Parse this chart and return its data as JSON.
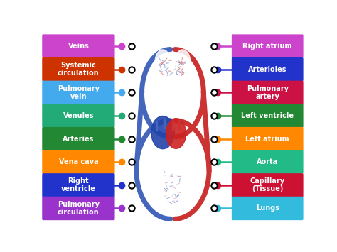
{
  "background_color": "#ffffff",
  "left_labels": [
    {
      "text": "Veins",
      "color": "#cc44cc",
      "dot_color": "#cc44cc"
    },
    {
      "text": "Systemic\ncirculation",
      "color": "#cc3300",
      "dot_color": "#cc3300"
    },
    {
      "text": "Pulmonary\nvein",
      "color": "#44aaee",
      "dot_color": "#44aaee"
    },
    {
      "text": "Venules",
      "color": "#22aa77",
      "dot_color": "#22aa77"
    },
    {
      "text": "Arteries",
      "color": "#228833",
      "dot_color": "#228833"
    },
    {
      "text": "Vena cava",
      "color": "#ff8800",
      "dot_color": "#ff8800"
    },
    {
      "text": "Right\nventricle",
      "color": "#2233cc",
      "dot_color": "#2233cc"
    },
    {
      "text": "Pulmonary\ncirculation",
      "color": "#9933cc",
      "dot_color": "#9933cc"
    }
  ],
  "right_labels": [
    {
      "text": "Right atrium",
      "color": "#cc44cc",
      "dot_color": "#cc44cc"
    },
    {
      "text": "Arterioles",
      "color": "#2233cc",
      "dot_color": "#2233cc"
    },
    {
      "text": "Pulmonary\nartery",
      "color": "#cc1144",
      "dot_color": "#cc1144"
    },
    {
      "text": "Left ventricle",
      "color": "#228833",
      "dot_color": "#228833"
    },
    {
      "text": "Left atrium",
      "color": "#ff8800",
      "dot_color": "#ff8800"
    },
    {
      "text": "Aorta",
      "color": "#22bb88",
      "dot_color": "#22bb88"
    },
    {
      "text": "Capillary\n(Tissue)",
      "color": "#cc1133",
      "dot_color": "#cc1133"
    },
    {
      "text": "Lungs",
      "color": "#33bbdd",
      "dot_color": "#33bbdd"
    }
  ],
  "blue_color": "#4466bb",
  "red_color": "#cc3333",
  "heart_blue": "#2244aa",
  "heart_red": "#cc2222"
}
